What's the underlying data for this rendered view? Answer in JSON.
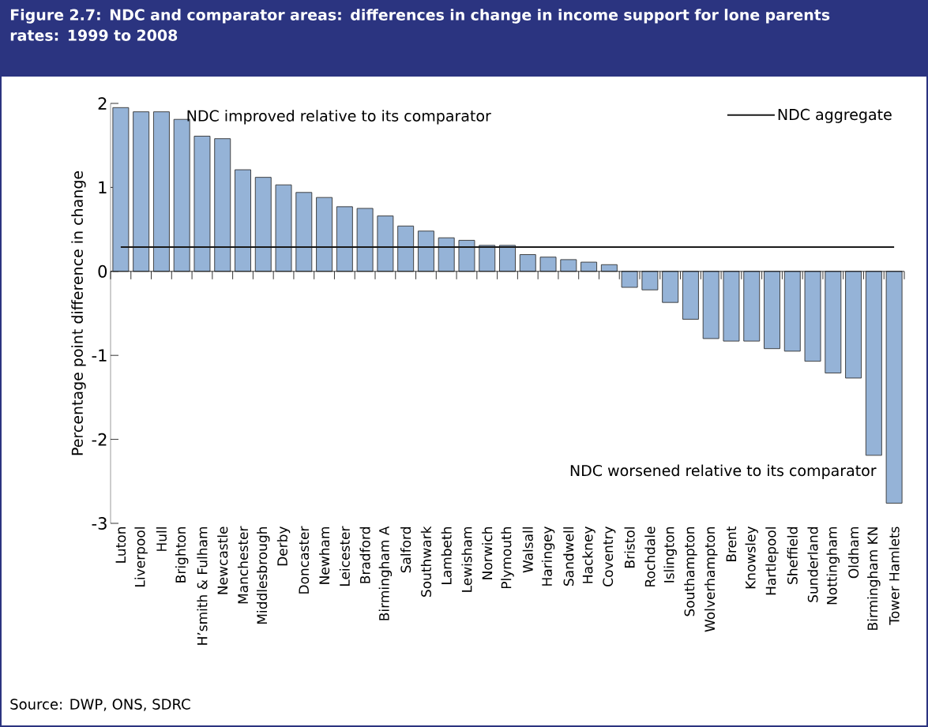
{
  "chart_data": {
    "type": "bar",
    "title": "Figure 2.7: NDC and comparator areas: differences in change in income support for lone parents rates: 1999 to 2008",
    "ylabel": "Percentage point difference in change",
    "categories": [
      "Luton",
      "Liverpool",
      "Hull",
      "Brighton",
      "H’smith & Fulham",
      "Newcastle",
      "Manchester",
      "Middlesbrough",
      "Derby",
      "Doncaster",
      "Newham",
      "Leicester",
      "Bradford",
      "Birmingham A",
      "Salford",
      "Southwark",
      "Lambeth",
      "Lewisham",
      "Norwich",
      "Plymouth",
      "Walsall",
      "Haringey",
      "Sandwell",
      "Hackney",
      "Coventry",
      "Bristol",
      "Rochdale",
      "Islington",
      "Southampton",
      "Wolverhampton",
      "Brent",
      "Knowsley",
      "Hartlepool",
      "Sheffield",
      "Sunderland",
      "Nottingham",
      "Oldham",
      "Birmingham KN",
      "Tower Hamlets"
    ],
    "series": [
      {
        "color": "#95b3d7",
        "values": [
          1.95,
          1.9,
          1.9,
          1.81,
          1.61,
          1.58,
          1.21,
          1.12,
          1.03,
          0.94,
          0.88,
          0.77,
          0.75,
          0.66,
          0.54,
          0.48,
          0.4,
          0.37,
          0.31,
          0.31,
          0.2,
          0.17,
          0.14,
          0.11,
          0.08,
          -0.19,
          -0.22,
          -0.37,
          -0.57,
          -0.8,
          -0.83,
          -0.83,
          -0.92,
          -0.95,
          -1.07,
          -1.21,
          -1.27,
          -2.19,
          -2.76
        ]
      },
      {
        "name": "NDC aggregate",
        "type": "line",
        "color": "#1a1a1a",
        "values": [
          0.29,
          0.29,
          0.29,
          0.29,
          0.29,
          0.29,
          0.29,
          0.29,
          0.29,
          0.29,
          0.29,
          0.29,
          0.29,
          0.29,
          0.29,
          0.29,
          0.29,
          0.29,
          0.29,
          0.29,
          0.29,
          0.29,
          0.29,
          0.29,
          0.29,
          0.29,
          0.29,
          0.29,
          0.29,
          0.29,
          0.29,
          0.29,
          0.29,
          0.29,
          0.29,
          0.29,
          0.29,
          0.29,
          0.29
        ]
      }
    ],
    "ylim": [
      -3,
      2
    ],
    "yticks": [
      -3,
      -2,
      -1,
      0,
      1,
      2
    ],
    "legend": "top right",
    "marker": "none",
    "annotations": [
      "NDC improved relative to its comparator",
      "NDC worsened relative to its comparator",
      "Source: DWP, ONS, SDRC"
    ]
  }
}
